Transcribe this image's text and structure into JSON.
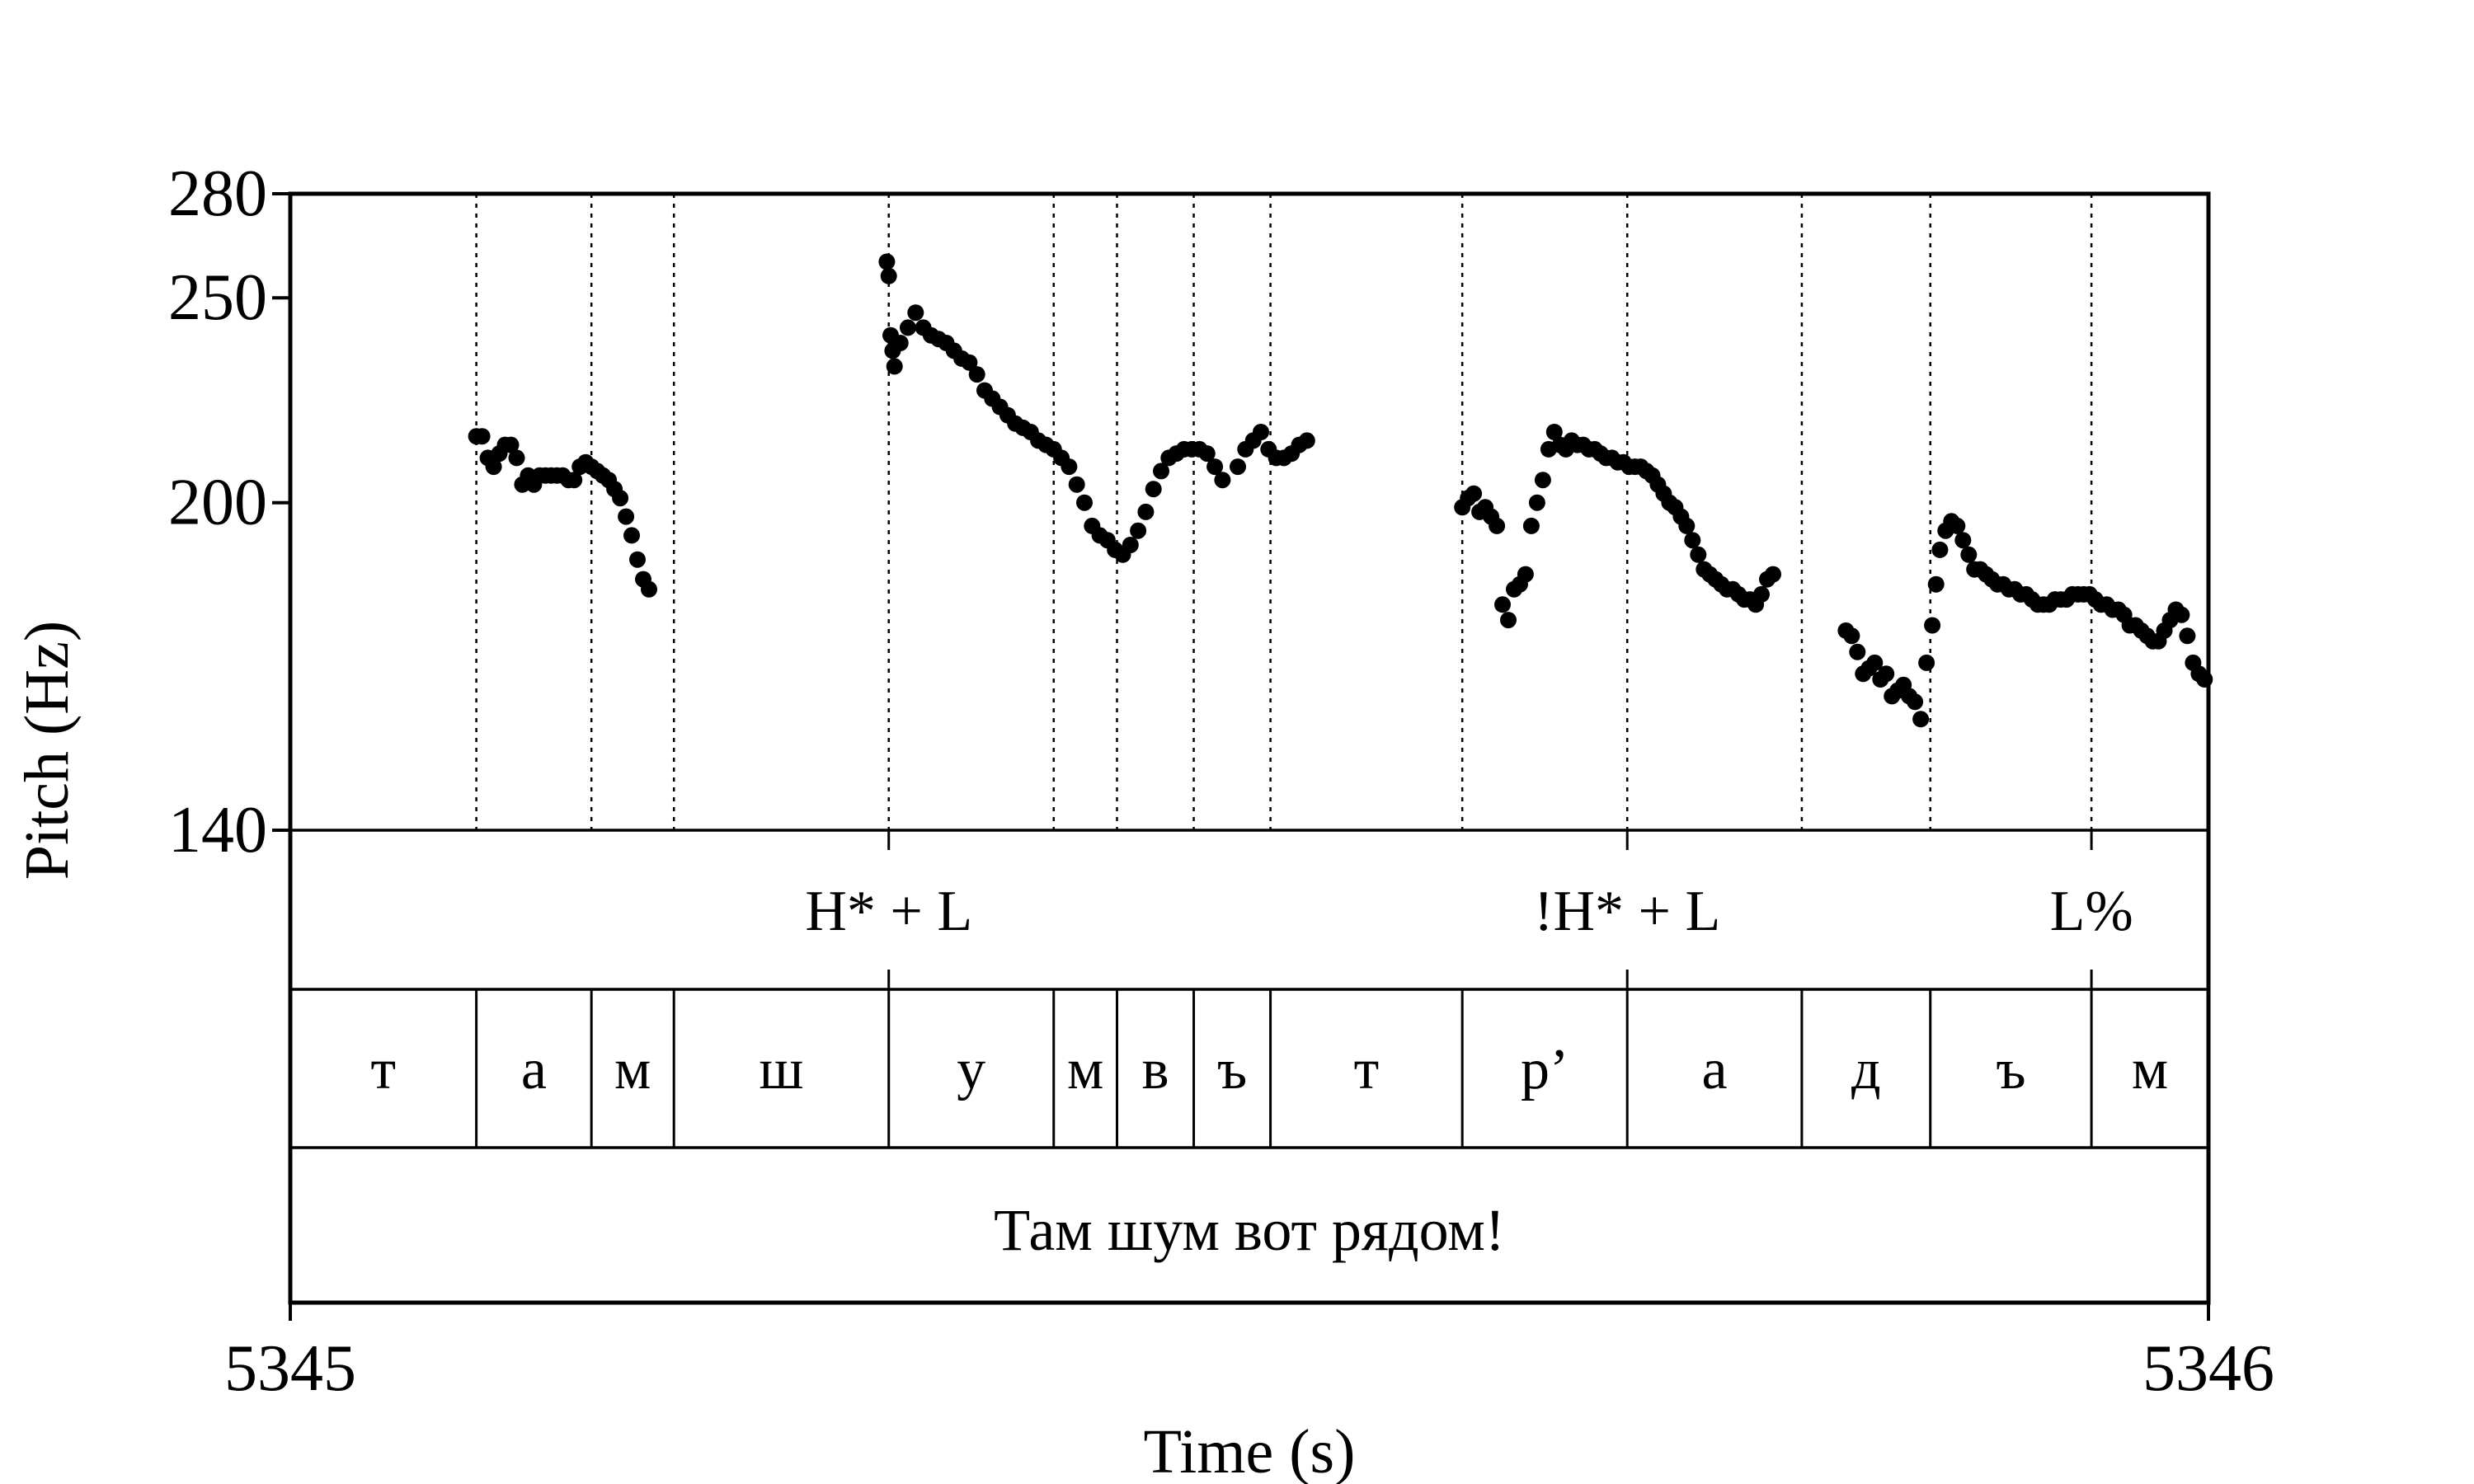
{
  "chart_data": {
    "type": "scatter",
    "xlabel": "Time (s)",
    "ylabel": "Pitch (Hz)",
    "xlim": [
      5345,
      5346
    ],
    "ylim": [
      140,
      280
    ],
    "y_scale": "log",
    "x_ticks": [
      "5345",
      "5346"
    ],
    "y_ticks": [
      {
        "value": 140,
        "label": "140"
      },
      {
        "value": 200,
        "label": "200"
      },
      {
        "value": 250,
        "label": "250"
      },
      {
        "value": 280,
        "label": "280"
      }
    ],
    "boundaries": [
      5345.097,
      5345.157,
      5345.2,
      5345.312,
      5345.398,
      5345.431,
      5345.471,
      5345.511,
      5345.611,
      5345.697,
      5345.788,
      5345.855,
      5345.939
    ],
    "tones": [
      {
        "t": 5345.312,
        "label": "H* + L"
      },
      {
        "t": 5345.697,
        "label": "!H* + L"
      },
      {
        "t": 5345.939,
        "label": "L%"
      }
    ],
    "segments": [
      {
        "start": 5345.0,
        "end": 5345.097,
        "label": "т"
      },
      {
        "start": 5345.097,
        "end": 5345.157,
        "label": "а"
      },
      {
        "start": 5345.157,
        "end": 5345.2,
        "label": "м"
      },
      {
        "start": 5345.2,
        "end": 5345.312,
        "label": "ш"
      },
      {
        "start": 5345.312,
        "end": 5345.398,
        "label": "у"
      },
      {
        "start": 5345.398,
        "end": 5345.431,
        "label": "м"
      },
      {
        "start": 5345.431,
        "end": 5345.471,
        "label": "в"
      },
      {
        "start": 5345.471,
        "end": 5345.511,
        "label": "ъ"
      },
      {
        "start": 5345.511,
        "end": 5345.611,
        "label": "т"
      },
      {
        "start": 5345.611,
        "end": 5345.697,
        "label": "р’"
      },
      {
        "start": 5345.697,
        "end": 5345.788,
        "label": "а"
      },
      {
        "start": 5345.788,
        "end": 5345.855,
        "label": "д"
      },
      {
        "start": 5345.855,
        "end": 5345.939,
        "label": "ъ"
      },
      {
        "start": 5345.939,
        "end": 5346.0,
        "label": "м"
      }
    ],
    "sentence": "Там шум вот рядом!",
    "series": [
      {
        "points": [
          [
            5345.097,
            215
          ],
          [
            5345.1,
            215
          ],
          [
            5345.103,
            210
          ],
          [
            5345.106,
            208
          ],
          [
            5345.109,
            211
          ],
          [
            5345.112,
            213
          ],
          [
            5345.115,
            213
          ],
          [
            5345.118,
            210
          ],
          [
            5345.121,
            204
          ],
          [
            5345.124,
            206
          ],
          [
            5345.127,
            204
          ],
          [
            5345.13,
            206
          ],
          [
            5345.133,
            206
          ],
          [
            5345.136,
            206
          ],
          [
            5345.139,
            206
          ],
          [
            5345.142,
            206
          ],
          [
            5345.145,
            205
          ],
          [
            5345.148,
            205
          ],
          [
            5345.151,
            208
          ],
          [
            5345.154,
            209
          ],
          [
            5345.157,
            208
          ],
          [
            5345.16,
            207
          ],
          [
            5345.163,
            206
          ],
          [
            5345.166,
            205
          ],
          [
            5345.169,
            203
          ],
          [
            5345.172,
            201
          ],
          [
            5345.175,
            197
          ],
          [
            5345.178,
            193
          ],
          [
            5345.181,
            188
          ],
          [
            5345.184,
            184
          ],
          [
            5345.187,
            182
          ],
          [
            5345.311,
            260
          ],
          [
            5345.312,
            256
          ],
          [
            5345.313,
            240
          ],
          [
            5345.314,
            236
          ],
          [
            5345.315,
            232
          ],
          [
            5345.318,
            238
          ],
          [
            5345.322,
            242
          ],
          [
            5345.326,
            246
          ],
          [
            5345.33,
            242
          ],
          [
            5345.334,
            240
          ],
          [
            5345.338,
            239
          ],
          [
            5345.342,
            238
          ],
          [
            5345.346,
            236
          ],
          [
            5345.35,
            234
          ],
          [
            5345.354,
            233
          ],
          [
            5345.358,
            230
          ],
          [
            5345.362,
            226
          ],
          [
            5345.366,
            224
          ],
          [
            5345.37,
            222
          ],
          [
            5345.374,
            220
          ],
          [
            5345.378,
            218
          ],
          [
            5345.382,
            217
          ],
          [
            5345.386,
            216
          ],
          [
            5345.39,
            214
          ],
          [
            5345.394,
            213
          ],
          [
            5345.398,
            212
          ],
          [
            5345.402,
            210
          ],
          [
            5345.406,
            208
          ],
          [
            5345.41,
            204
          ],
          [
            5345.414,
            200
          ],
          [
            5345.418,
            195
          ],
          [
            5345.422,
            193
          ],
          [
            5345.426,
            192
          ],
          [
            5345.43,
            190
          ],
          [
            5345.434,
            189
          ],
          [
            5345.438,
            191
          ],
          [
            5345.442,
            194
          ],
          [
            5345.446,
            198
          ],
          [
            5345.45,
            203
          ],
          [
            5345.454,
            207
          ],
          [
            5345.458,
            210
          ],
          [
            5345.462,
            211
          ],
          [
            5345.466,
            212
          ],
          [
            5345.47,
            212
          ],
          [
            5345.474,
            212
          ],
          [
            5345.478,
            211
          ],
          [
            5345.482,
            208
          ],
          [
            5345.486,
            205
          ],
          [
            5345.494,
            208
          ],
          [
            5345.498,
            212
          ],
          [
            5345.502,
            214
          ],
          [
            5345.506,
            216
          ],
          [
            5345.51,
            212
          ],
          [
            5345.514,
            210
          ],
          [
            5345.518,
            210
          ],
          [
            5345.522,
            211
          ],
          [
            5345.526,
            213
          ],
          [
            5345.53,
            214
          ],
          [
            5345.611,
            199
          ],
          [
            5345.614,
            201
          ],
          [
            5345.617,
            202
          ],
          [
            5345.62,
            198
          ],
          [
            5345.623,
            199
          ],
          [
            5345.626,
            197
          ],
          [
            5345.629,
            195
          ],
          [
            5345.632,
            179
          ],
          [
            5345.635,
            176
          ],
          [
            5345.638,
            182
          ],
          [
            5345.641,
            183
          ],
          [
            5345.644,
            185
          ],
          [
            5345.647,
            195
          ],
          [
            5345.65,
            200
          ],
          [
            5345.653,
            205
          ],
          [
            5345.656,
            212
          ],
          [
            5345.659,
            216
          ],
          [
            5345.662,
            213
          ],
          [
            5345.665,
            212
          ],
          [
            5345.668,
            214
          ],
          [
            5345.671,
            213
          ],
          [
            5345.674,
            213
          ],
          [
            5345.677,
            212
          ],
          [
            5345.68,
            212
          ],
          [
            5345.683,
            211
          ],
          [
            5345.686,
            210
          ],
          [
            5345.689,
            210
          ],
          [
            5345.692,
            209
          ],
          [
            5345.695,
            209
          ],
          [
            5345.698,
            208
          ],
          [
            5345.701,
            208
          ],
          [
            5345.704,
            208
          ],
          [
            5345.707,
            207
          ],
          [
            5345.71,
            206
          ],
          [
            5345.713,
            204
          ],
          [
            5345.716,
            202
          ],
          [
            5345.719,
            200
          ],
          [
            5345.722,
            199
          ],
          [
            5345.725,
            197
          ],
          [
            5345.728,
            195
          ],
          [
            5345.731,
            192
          ],
          [
            5345.734,
            189
          ],
          [
            5345.737,
            186
          ],
          [
            5345.74,
            185
          ],
          [
            5345.743,
            184
          ],
          [
            5345.746,
            183
          ],
          [
            5345.749,
            182
          ],
          [
            5345.752,
            182
          ],
          [
            5345.755,
            181
          ],
          [
            5345.758,
            180
          ],
          [
            5345.761,
            180
          ],
          [
            5345.764,
            179
          ],
          [
            5345.767,
            181
          ],
          [
            5345.77,
            184
          ],
          [
            5345.773,
            185
          ],
          [
            5345.811,
            174
          ],
          [
            5345.814,
            173
          ],
          [
            5345.817,
            170
          ],
          [
            5345.82,
            166
          ],
          [
            5345.823,
            167
          ],
          [
            5345.826,
            168
          ],
          [
            5345.829,
            165
          ],
          [
            5345.832,
            166
          ],
          [
            5345.835,
            162
          ],
          [
            5345.838,
            163
          ],
          [
            5345.841,
            164
          ],
          [
            5345.844,
            162
          ],
          [
            5345.847,
            161
          ],
          [
            5345.85,
            158
          ],
          [
            5345.853,
            168
          ],
          [
            5345.856,
            175
          ],
          [
            5345.858,
            183
          ],
          [
            5345.86,
            190
          ],
          [
            5345.863,
            194
          ],
          [
            5345.866,
            196
          ],
          [
            5345.869,
            195
          ],
          [
            5345.872,
            192
          ],
          [
            5345.875,
            189
          ],
          [
            5345.878,
            186
          ],
          [
            5345.881,
            186
          ],
          [
            5345.884,
            185
          ],
          [
            5345.887,
            184
          ],
          [
            5345.89,
            183
          ],
          [
            5345.893,
            183
          ],
          [
            5345.896,
            182
          ],
          [
            5345.899,
            182
          ],
          [
            5345.902,
            181
          ],
          [
            5345.905,
            181
          ],
          [
            5345.908,
            180
          ],
          [
            5345.911,
            179
          ],
          [
            5345.914,
            179
          ],
          [
            5345.917,
            179
          ],
          [
            5345.92,
            180
          ],
          [
            5345.923,
            180
          ],
          [
            5345.926,
            180
          ],
          [
            5345.929,
            181
          ],
          [
            5345.932,
            181
          ],
          [
            5345.935,
            181
          ],
          [
            5345.938,
            181
          ],
          [
            5345.941,
            180
          ],
          [
            5345.944,
            179
          ],
          [
            5345.947,
            179
          ],
          [
            5345.95,
            178
          ],
          [
            5345.953,
            178
          ],
          [
            5345.956,
            177
          ],
          [
            5345.959,
            175
          ],
          [
            5345.962,
            175
          ],
          [
            5345.965,
            174
          ],
          [
            5345.968,
            173
          ],
          [
            5345.971,
            172
          ],
          [
            5345.974,
            172
          ],
          [
            5345.977,
            174
          ],
          [
            5345.98,
            176
          ],
          [
            5345.983,
            178
          ],
          [
            5345.986,
            177
          ],
          [
            5345.989,
            173
          ],
          [
            5345.992,
            168
          ],
          [
            5345.995,
            166
          ],
          [
            5345.998,
            165
          ]
        ]
      }
    ]
  }
}
